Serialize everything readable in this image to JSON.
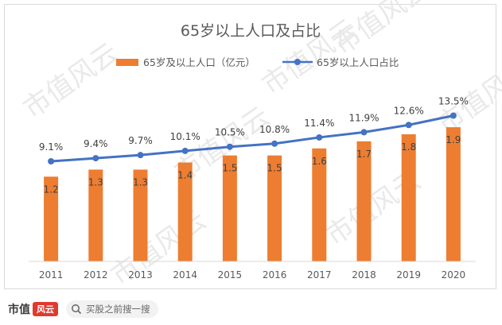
{
  "chart_data": {
    "type": "bar+line",
    "title": "65岁以上人口及占比",
    "categories": [
      "2011",
      "2012",
      "2013",
      "2014",
      "2015",
      "2016",
      "2017",
      "2018",
      "2019",
      "2020"
    ],
    "series": [
      {
        "name": "65岁及以上人口（亿元）",
        "type": "bar",
        "color": "#ed7d31",
        "values": [
          1.2,
          1.3,
          1.3,
          1.4,
          1.5,
          1.5,
          1.6,
          1.7,
          1.8,
          1.9
        ],
        "labels": [
          "1.2",
          "1.3",
          "1.3",
          "1.4",
          "1.5",
          "1.5",
          "1.6",
          "1.7",
          "1.8",
          "1.9"
        ]
      },
      {
        "name": "65岁以上人口占比",
        "type": "line",
        "color": "#4472c4",
        "values": [
          9.1,
          9.4,
          9.7,
          10.1,
          10.5,
          10.8,
          11.4,
          11.9,
          12.6,
          13.5
        ],
        "labels": [
          "9.1%",
          "9.4%",
          "9.7%",
          "10.1%",
          "10.5%",
          "10.8%",
          "11.4%",
          "11.9%",
          "12.6%",
          "13.5%"
        ]
      }
    ],
    "legend_position": "top",
    "grid": false
  },
  "watermark": {
    "text": "市值风云"
  },
  "footer": {
    "brand": "市值",
    "brand_logo": "风云",
    "search_text": "买股之前搜一搜",
    "search_icon": "search-icon"
  }
}
